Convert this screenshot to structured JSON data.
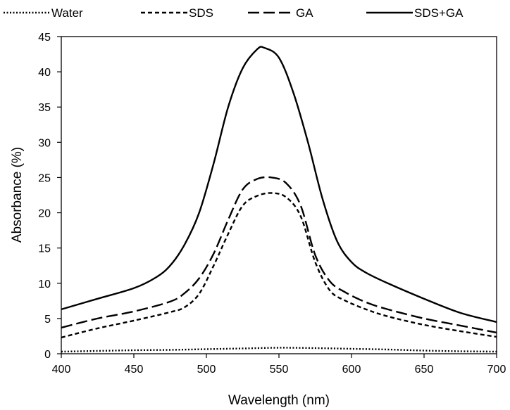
{
  "chart_data": {
    "type": "line",
    "title": "",
    "xlabel": "Wavelength (nm)",
    "ylabel": "Absorbance (%)",
    "xlim": [
      400,
      700
    ],
    "ylim": [
      0,
      45
    ],
    "xticks": [
      400,
      450,
      500,
      550,
      600,
      650,
      700
    ],
    "yticks": [
      0,
      5,
      10,
      15,
      20,
      25,
      30,
      35,
      40,
      45
    ],
    "grid": false,
    "legend_position": "top",
    "series": [
      {
        "name": "Water",
        "dash": "dotted",
        "color": "#000000",
        "x": [
          400,
          425,
          450,
          475,
          500,
          525,
          550,
          575,
          600,
          625,
          650,
          675,
          700
        ],
        "y": [
          0.3,
          0.4,
          0.5,
          0.55,
          0.65,
          0.75,
          0.85,
          0.8,
          0.7,
          0.6,
          0.45,
          0.35,
          0.3
        ]
      },
      {
        "name": "SDS",
        "dash": "short-dash",
        "color": "#000000",
        "x": [
          400,
          425,
          450,
          475,
          485,
          495,
          505,
          515,
          525,
          535,
          545,
          555,
          565,
          575,
          585,
          595,
          610,
          625,
          650,
          675,
          700
        ],
        "y": [
          2.3,
          3.6,
          4.7,
          5.9,
          6.6,
          8.5,
          12.5,
          17.0,
          21.0,
          22.4,
          22.8,
          22.2,
          19.5,
          13.0,
          9.0,
          7.6,
          6.3,
          5.3,
          4.1,
          3.2,
          2.4
        ]
      },
      {
        "name": "GA",
        "dash": "long-dash",
        "color": "#000000",
        "x": [
          400,
          425,
          450,
          475,
          485,
          495,
          505,
          515,
          525,
          535,
          545,
          555,
          565,
          575,
          585,
          595,
          610,
          625,
          650,
          675,
          700
        ],
        "y": [
          3.7,
          5.0,
          6.0,
          7.4,
          8.6,
          10.7,
          14.2,
          19.0,
          23.3,
          24.8,
          25.0,
          24.2,
          21.0,
          14.0,
          10.3,
          8.8,
          7.3,
          6.3,
          5.0,
          4.0,
          3.0
        ]
      },
      {
        "name": "SDS+GA",
        "dash": "solid",
        "color": "#000000",
        "x": [
          400,
          425,
          450,
          465,
          475,
          485,
          495,
          505,
          515,
          525,
          535,
          540,
          550,
          560,
          570,
          580,
          590,
          600,
          610,
          625,
          650,
          675,
          700
        ],
        "y": [
          6.3,
          7.8,
          9.3,
          10.8,
          12.5,
          15.5,
          20.0,
          27.0,
          35.0,
          40.5,
          43.2,
          43.4,
          42.0,
          37.0,
          30.0,
          22.0,
          16.0,
          13.0,
          11.5,
          10.0,
          7.8,
          5.8,
          4.5
        ]
      }
    ]
  }
}
